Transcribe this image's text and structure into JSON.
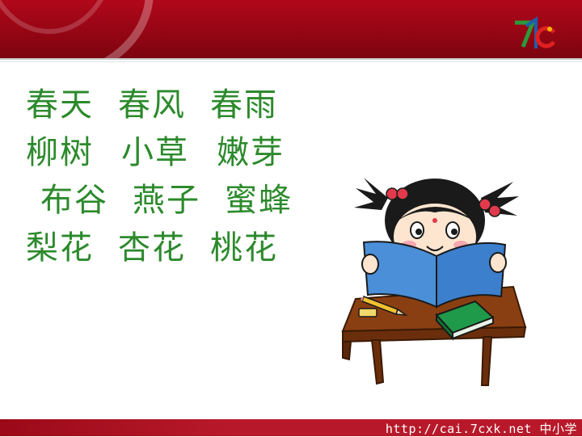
{
  "words": [
    [
      "春天",
      "春风",
      "春雨"
    ],
    [
      "柳树",
      "小草",
      "嫩芽"
    ],
    [
      "布谷",
      "燕子",
      "蜜蜂"
    ],
    [
      "梨花",
      "杏花",
      "桃花"
    ]
  ],
  "footer": {
    "url": "http://cai.7cxk.net 中小学"
  },
  "logo": {
    "brand": "7c"
  },
  "colors": {
    "header": "#8e0512",
    "words": "#2c8a2c",
    "footer": "#b8192a"
  }
}
